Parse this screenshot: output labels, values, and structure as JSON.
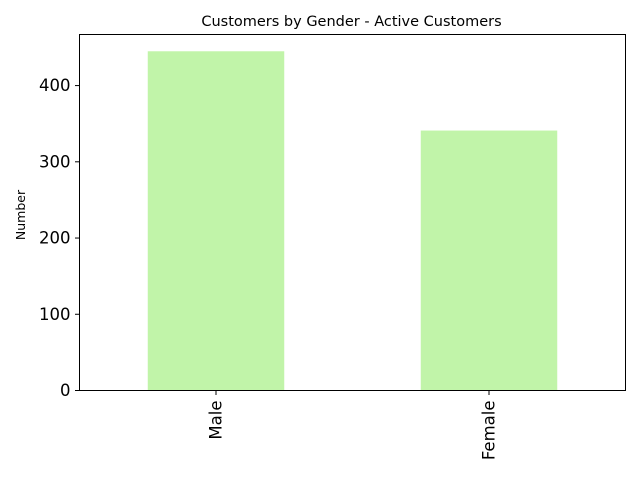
{
  "chart_data": {
    "type": "bar",
    "title": "Customers by Gender - Active Customers",
    "xlabel": "",
    "ylabel": "Number",
    "categories": [
      "Male",
      "Female"
    ],
    "values": [
      445,
      341
    ],
    "ylim": [
      0,
      467
    ],
    "yticks": [
      0,
      100,
      200,
      300,
      400
    ],
    "bar_color": "#c1f4a9",
    "grid": false,
    "legend": "none"
  }
}
